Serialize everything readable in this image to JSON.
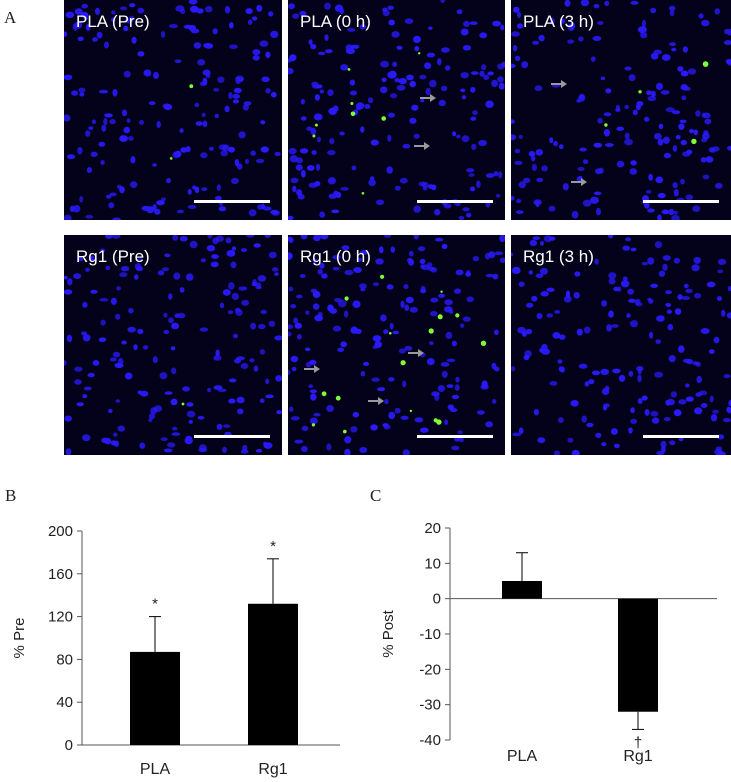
{
  "figure": {
    "panel_a_letter": "A",
    "panel_b_letter": "B",
    "panel_c_letter": "C"
  },
  "micrographs": [
    {
      "label": "PLA (Pre)"
    },
    {
      "label": "PLA (0 h)"
    },
    {
      "label": "PLA (3 h)"
    },
    {
      "label": "Rg1 (Pre)"
    },
    {
      "label": "Rg1 (0 h)"
    },
    {
      "label": "Rg1 (3 h)"
    }
  ],
  "colors": {
    "nuclei": "#2a1aff",
    "marker": "#7dff3a",
    "background": "#04021a",
    "arrow": "#9a9a9a",
    "bar": "#000000"
  },
  "chart_data": [
    {
      "type": "bar",
      "panel": "B",
      "categories": [
        "PLA",
        "Rg1"
      ],
      "values": [
        87,
        132
      ],
      "errors": [
        33,
        42
      ],
      "annotations": [
        "*",
        "*"
      ],
      "ylabel": "% Pre",
      "xlabel": "",
      "ylim": [
        0,
        200
      ],
      "yticks": [
        0,
        40,
        80,
        120,
        160,
        200
      ]
    },
    {
      "type": "bar",
      "panel": "C",
      "categories": [
        "PLA",
        "Rg1"
      ],
      "values": [
        5,
        -32
      ],
      "errors": [
        8,
        5
      ],
      "annotations": [
        "",
        "†"
      ],
      "ylabel": "% Post",
      "xlabel": "",
      "ylim": [
        -40,
        20
      ],
      "yticks": [
        20,
        10,
        0,
        -10,
        -20,
        -30,
        -40
      ]
    }
  ]
}
